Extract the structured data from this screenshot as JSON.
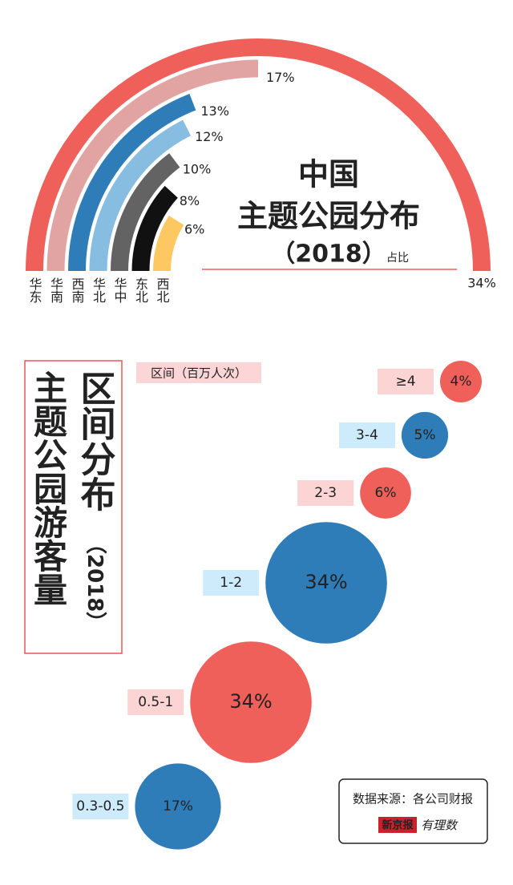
{
  "chart_data": [
    {
      "type": "radial_bar",
      "title": "中国",
      "subtitle": "主题公园分布",
      "year": "（2018）",
      "unit": "占比",
      "categories": [
        "华东",
        "华南",
        "西南",
        "华北",
        "华中",
        "东北",
        "西北"
      ],
      "values": [
        34,
        17,
        13,
        12,
        10,
        8,
        6
      ],
      "value_labels": [
        "34%",
        "17%",
        "13%",
        "12%",
        "10%",
        "8%",
        "6%"
      ],
      "colors": [
        "#f0605a",
        "#e2a3a3",
        "#2e7cb8",
        "#86bde0",
        "#636363",
        "#111111",
        "#fdc862"
      ]
    },
    {
      "type": "bubble",
      "title": "区间分布",
      "subtitle": "主题公园游客量",
      "year": "（2018）",
      "axis_label": "区间（百万人次）",
      "categories": [
        "≥4",
        "3-4",
        "2-3",
        "1-2",
        "0.5-1",
        "0.3-0.5"
      ],
      "values": [
        4,
        5,
        6,
        34,
        34,
        17
      ],
      "value_labels": [
        "4%",
        "5%",
        "6%",
        "34%",
        "34%",
        "17%"
      ],
      "colors": [
        "#f0605a",
        "#2e7cb8",
        "#f0605a",
        "#2e7cb8",
        "#f0605a",
        "#2e7cb8"
      ]
    }
  ],
  "source": {
    "text": "数据来源：各公司财报",
    "brand": "新京报",
    "brand2": "有理数"
  }
}
